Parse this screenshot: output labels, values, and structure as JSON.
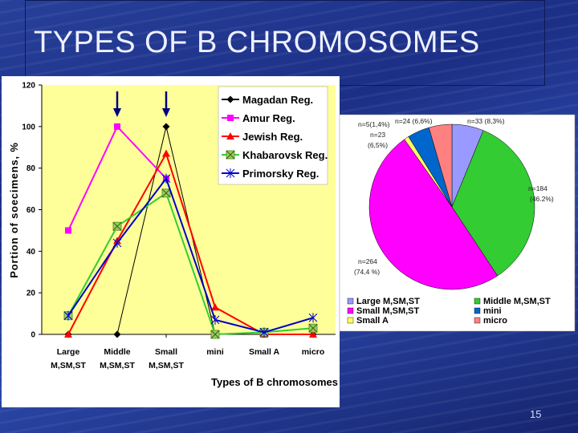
{
  "slide": {
    "title": "TYPES OF B CHROMOSOMES",
    "page_number": "15"
  },
  "chart_data": [
    {
      "type": "line",
      "ylabel": "Portion of soecimens, %",
      "xlabel": "Types of B chromosomes",
      "ylim": [
        0,
        120
      ],
      "yticks": [
        0,
        20,
        40,
        60,
        80,
        100,
        120
      ],
      "categories": [
        "Large M,SM,ST",
        "Middle M,SM,ST",
        "Small M,SM,ST",
        "mini",
        "Small A",
        "micro"
      ],
      "category_lines": [
        [
          "Large",
          "M,SM,ST"
        ],
        [
          "Middle",
          "M,SM,ST"
        ],
        [
          "Small",
          "M,SM,ST"
        ],
        [
          "mini",
          ""
        ],
        [
          "Small A",
          ""
        ],
        [
          "micro",
          ""
        ]
      ],
      "arrows_at": [
        1,
        2
      ],
      "legend": "top-right",
      "series": [
        {
          "name": "Magadan Reg.",
          "color": "#000000",
          "marker": "diamond",
          "values": [
            0,
            0,
            100,
            0,
            0,
            0
          ]
        },
        {
          "name": "Amur Reg.",
          "color": "#ff00ff",
          "marker": "square",
          "values": [
            50,
            100,
            75,
            null,
            null,
            null
          ]
        },
        {
          "name": "Jewish Reg.",
          "color": "#ff0000",
          "marker": "triangle",
          "values": [
            0,
            45,
            87,
            13,
            0,
            0
          ]
        },
        {
          "name": "Khabarovsk Reg.",
          "color": "#33cc33",
          "marker": "xbox",
          "values": [
            9,
            52,
            68,
            0,
            1,
            3
          ]
        },
        {
          "name": "Primorsky Reg.",
          "color": "#0000cc",
          "marker": "star",
          "values": [
            9,
            44,
            75,
            7,
            1,
            8
          ]
        }
      ]
    },
    {
      "type": "pie",
      "slices": [
        {
          "name": "Large M,SM,ST",
          "value": 33,
          "color": "#9999ff",
          "label": "n=33 (8,3%)"
        },
        {
          "name": "Middle M,SM,ST",
          "value": 184,
          "color": "#33cc33",
          "label": "n=184 (46.2%)"
        },
        {
          "name": "Small M,SM,ST",
          "value": 264,
          "color": "#ff00ff",
          "label": "n=264 (74,4 %)"
        },
        {
          "name": "Small A",
          "value": 5,
          "color": "#ffff66",
          "label": "n=5(1,4%)"
        },
        {
          "name": "mini",
          "value": 23,
          "color": "#0066cc",
          "label": "n=23 (6,5%)"
        },
        {
          "name": "micro",
          "value": 24,
          "color": "#ff8080",
          "label": "n=24 (6,6%)"
        }
      ],
      "legend_order": [
        "Large M,SM,ST",
        "Middle M,SM,ST",
        "Small M,SM,ST",
        "mini",
        "Small A",
        "micro"
      ],
      "legend": "bottom"
    }
  ]
}
